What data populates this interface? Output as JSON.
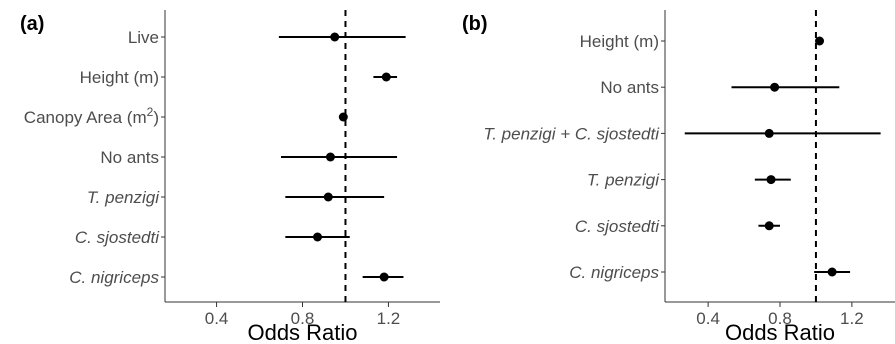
{
  "chart_data": [
    {
      "type": "scatter",
      "panel_label": "(a)",
      "xlabel": "Odds Ratio",
      "xlim": [
        0.16,
        1.44
      ],
      "x_ticks": [
        "0.4",
        "0.8",
        "1.2"
      ],
      "x_tick_values": [
        0.4,
        0.8,
        1.2
      ],
      "reference_line": 1.0,
      "categories": [
        "Live",
        "Height (m)",
        "Canopy Area (m2)",
        "No ants",
        "T. penzigi",
        "C. sjostedti",
        "C. nigriceps"
      ],
      "italic": [
        false,
        false,
        false,
        false,
        true,
        true,
        true
      ],
      "estimates": [
        0.95,
        1.19,
        0.99,
        0.93,
        0.92,
        0.87,
        1.18
      ],
      "ci_lower": [
        0.69,
        1.13,
        0.98,
        0.7,
        0.72,
        0.72,
        1.08
      ],
      "ci_upper": [
        1.28,
        1.24,
        1.0,
        1.24,
        1.18,
        1.02,
        1.27
      ]
    },
    {
      "type": "scatter",
      "panel_label": "(b)",
      "xlabel": "Odds Ratio",
      "xlim": [
        0.16,
        1.44
      ],
      "x_ticks": [
        "0.4",
        "0.8",
        "1.2"
      ],
      "x_tick_values": [
        0.4,
        0.8,
        1.2
      ],
      "reference_line": 1.0,
      "categories": [
        "Height (m)",
        "No ants",
        "T. penzigi + C. sjostedti",
        "T. penzigi",
        "C. sjostedti",
        "C. nigriceps"
      ],
      "italic": [
        false,
        false,
        true,
        true,
        true,
        true
      ],
      "estimates": [
        1.02,
        0.77,
        0.74,
        0.75,
        0.74,
        1.09
      ],
      "ci_lower": [
        1.01,
        0.53,
        0.27,
        0.66,
        0.68,
        0.99
      ],
      "ci_upper": [
        1.04,
        1.13,
        1.36,
        0.86,
        0.8,
        1.19
      ]
    }
  ]
}
